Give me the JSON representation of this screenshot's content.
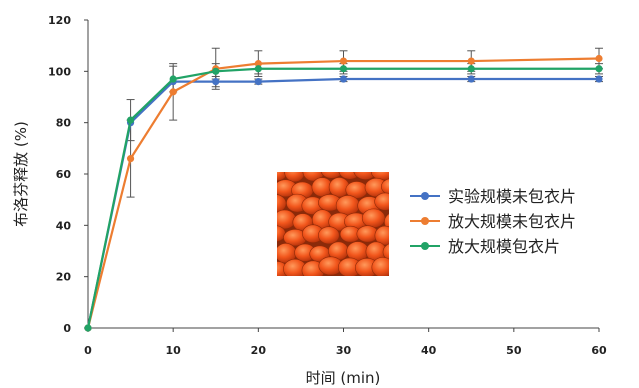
{
  "chart_data": {
    "type": "line",
    "xlabel": "时间 (min)",
    "ylabel": "布洛芬释放 (%)",
    "xlim": [
      0,
      60
    ],
    "ylim": [
      0,
      120
    ],
    "xticks": [
      0,
      10,
      20,
      30,
      40,
      50,
      60
    ],
    "yticks": [
      0,
      20,
      40,
      60,
      80,
      100,
      120
    ],
    "grid": false,
    "legend_position": "right",
    "x": [
      0,
      5,
      10,
      15,
      20,
      30,
      45,
      60
    ],
    "series": [
      {
        "name": "实验规模未包衣片",
        "color": "#4472c4",
        "values": [
          0,
          80,
          96,
          96,
          96,
          97,
          97,
          97
        ],
        "errors": [
          0,
          0,
          0,
          2,
          1,
          1,
          1,
          1
        ]
      },
      {
        "name": "放大规模未包衣片",
        "color": "#ed7d31",
        "values": [
          0,
          66,
          92,
          101,
          103,
          104,
          104,
          105
        ],
        "errors": [
          0,
          15,
          11,
          8,
          5,
          4,
          4,
          4
        ]
      },
      {
        "name": "放大规模包衣片",
        "color": "#21a366",
        "values": [
          0,
          81,
          97,
          100,
          101,
          101,
          101,
          101
        ],
        "errors": [
          0,
          8,
          5,
          3,
          2,
          2,
          2,
          2
        ]
      }
    ],
    "inset_image": "orange-coated-tablets-photo"
  }
}
